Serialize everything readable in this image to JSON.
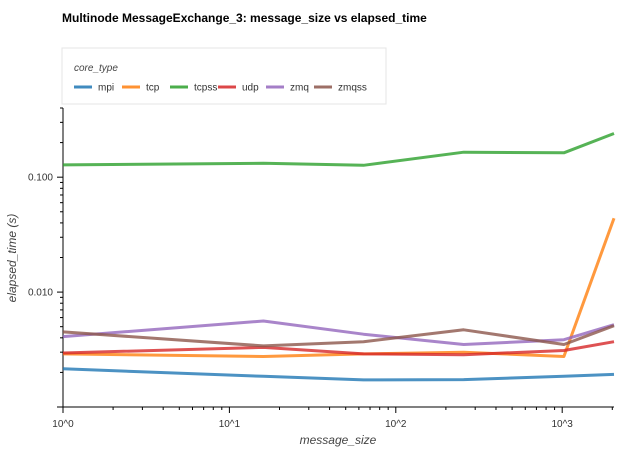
{
  "chart_data": {
    "type": "line",
    "title": "Multinode MessageExchange_3: message_size vs elapsed_time",
    "xlabel": "message_size",
    "ylabel": "elapsed_time (s)",
    "x_scale": "log",
    "y_scale": "log",
    "xlim": [
      1,
      2048
    ],
    "ylim": [
      0.001,
      0.4
    ],
    "x_ticks": [
      {
        "value": 1,
        "label": "10^0"
      },
      {
        "value": 10,
        "label": "10^1"
      },
      {
        "value": 100,
        "label": "10^2"
      },
      {
        "value": 1000,
        "label": "10^3"
      }
    ],
    "y_ticks": [
      {
        "value": 0.01,
        "label": "0.010"
      },
      {
        "value": 0.1,
        "label": "0.100"
      }
    ],
    "legend": {
      "title": "core_type",
      "placement": "top-left"
    },
    "x": [
      1,
      16,
      64,
      256,
      1024,
      2048
    ],
    "series": [
      {
        "name": "mpi",
        "color": "#1f77b4",
        "values": [
          0.00215,
          0.00185,
          0.00172,
          0.00173,
          0.00185,
          0.00192
        ]
      },
      {
        "name": "tcp",
        "color": "#ff7f0e",
        "values": [
          0.0029,
          0.00275,
          0.0029,
          0.003,
          0.00275,
          0.044
        ]
      },
      {
        "name": "tcpss",
        "color": "#2ca02c",
        "values": [
          0.128,
          0.132,
          0.127,
          0.165,
          0.163,
          0.24
        ]
      },
      {
        "name": "udp",
        "color": "#d62728",
        "values": [
          0.00295,
          0.0033,
          0.0029,
          0.00285,
          0.0031,
          0.0037
        ]
      },
      {
        "name": "zmq",
        "color": "#9467bd",
        "values": [
          0.0041,
          0.0056,
          0.0043,
          0.0035,
          0.00385,
          0.0052
        ]
      },
      {
        "name": "zmqss",
        "color": "#8c564b",
        "values": [
          0.0045,
          0.0034,
          0.0037,
          0.0047,
          0.0035,
          0.0051
        ]
      }
    ]
  }
}
